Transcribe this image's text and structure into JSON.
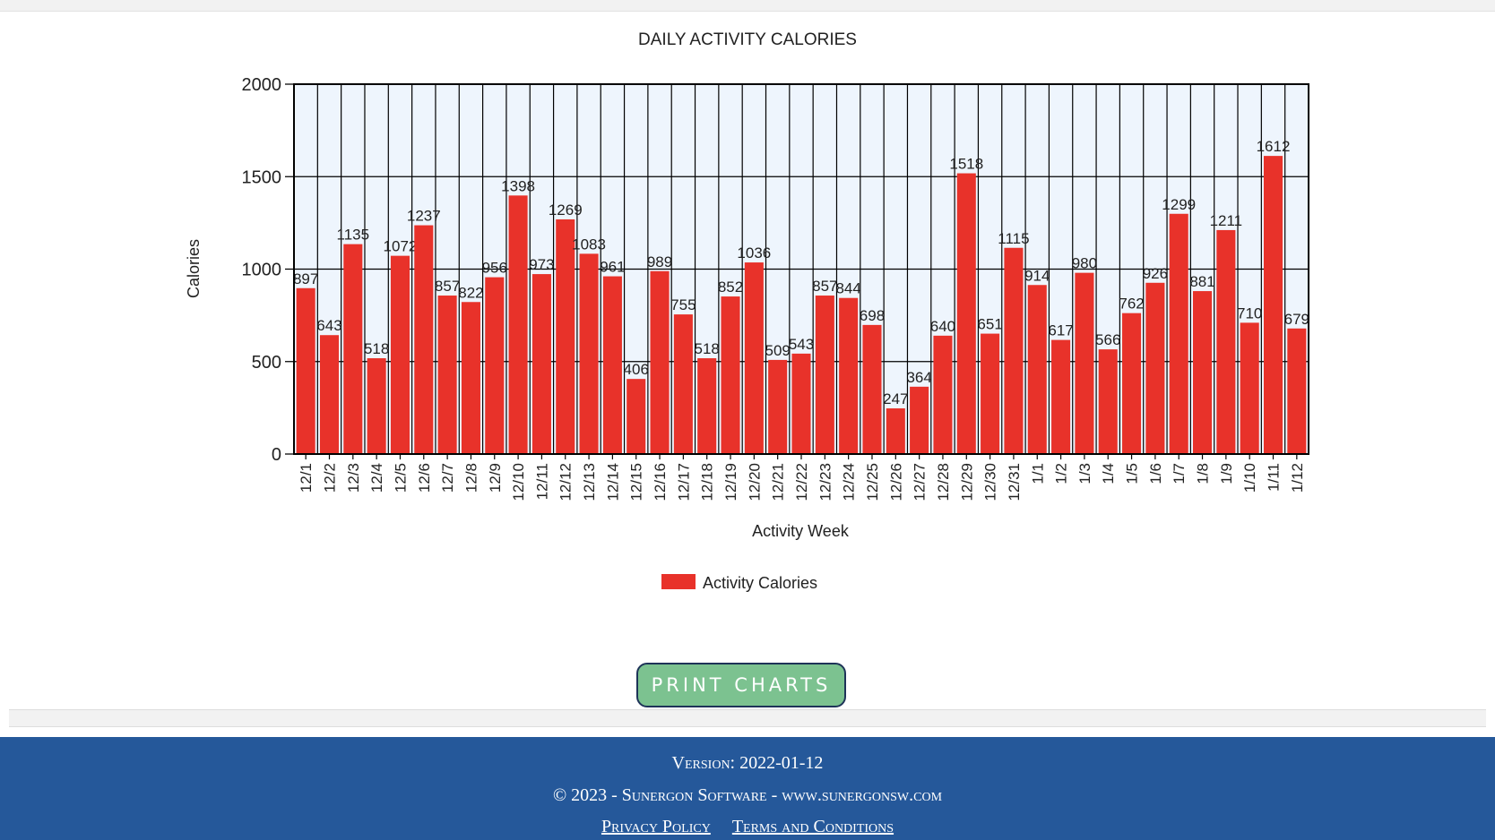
{
  "chart_data": {
    "type": "bar",
    "title": "DAILY ACTIVITY CALORIES",
    "xlabel": "Activity Week",
    "ylabel": "Calories",
    "ylim": [
      0,
      2000
    ],
    "yticks": [
      0,
      500,
      1000,
      1500,
      2000
    ],
    "grid": true,
    "legend_position": "bottom",
    "categories": [
      "12/1",
      "12/2",
      "12/3",
      "12/4",
      "12/5",
      "12/6",
      "12/7",
      "12/8",
      "12/9",
      "12/10",
      "12/11",
      "12/12",
      "12/13",
      "12/14",
      "12/15",
      "12/16",
      "12/17",
      "12/18",
      "12/19",
      "12/20",
      "12/21",
      "12/22",
      "12/23",
      "12/24",
      "12/25",
      "12/26",
      "12/27",
      "12/28",
      "12/29",
      "12/30",
      "12/31",
      "1/1",
      "1/2",
      "1/3",
      "1/4",
      "1/5",
      "1/6",
      "1/7",
      "1/8",
      "1/9",
      "1/10",
      "1/11",
      "1/12"
    ],
    "series": [
      {
        "name": "Activity Calories",
        "color": "#e8322a",
        "values": [
          897,
          643,
          1135,
          518,
          1072,
          1237,
          857,
          822,
          956,
          1398,
          973,
          1269,
          1083,
          961,
          406,
          989,
          755,
          518,
          852,
          1036,
          509,
          543,
          857,
          844,
          698,
          247,
          364,
          640,
          1518,
          651,
          1115,
          914,
          617,
          980,
          566,
          762,
          926,
          1299,
          881,
          1211,
          710,
          1612,
          679
        ]
      }
    ]
  },
  "print_button": {
    "label": "PRINT CHARTS"
  },
  "footer": {
    "version": "Version: 2022-01-12",
    "copyright": "© 2023 - Sunergon Software - www.sunergonsw.com",
    "privacy": "Privacy Policy",
    "terms": "Terms and Conditions"
  }
}
